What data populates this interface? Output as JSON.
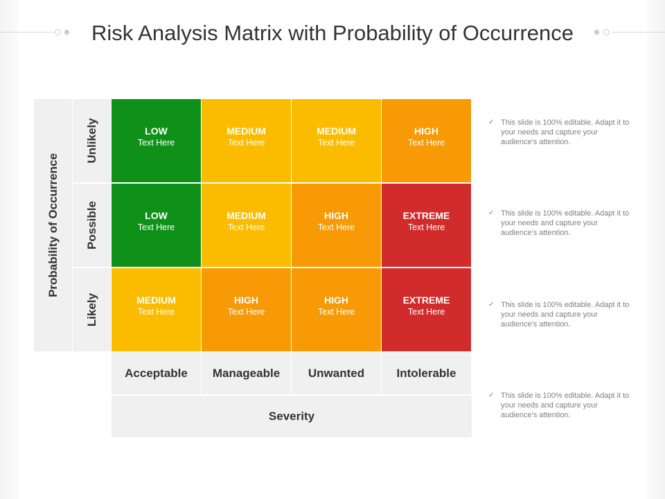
{
  "title": "Risk Analysis Matrix with Probability of Occurrence",
  "y_axis_label": "Probability of Occurrence",
  "x_axis_label": "Severity",
  "rows": [
    "Unlikely",
    "Possible",
    "Likely"
  ],
  "columns": [
    "Acceptable",
    "Manageable",
    "Unwanted",
    "Intolerable"
  ],
  "cell_sub": "Text Here",
  "matrix": [
    [
      "LOW",
      "MEDIUM",
      "MEDIUM",
      "HIGH"
    ],
    [
      "LOW",
      "MEDIUM",
      "HIGH",
      "EXTREME"
    ],
    [
      "MEDIUM",
      "HIGH",
      "HIGH",
      "EXTREME"
    ]
  ],
  "level_colors": {
    "LOW": "#0f9119",
    "MEDIUM": "#fbbc00",
    "HIGH": "#f79a05",
    "EXTREME": "#d22b2b"
  },
  "notes": [
    "This slide is 100% editable. Adapt it to your needs and capture your audience's attention.",
    "This slide is 100% editable. Adapt it to your needs and capture your audience's attention.",
    "This slide is 100% editable. Adapt it to your needs and capture your audience's attention.",
    "This slide is 100% editable. Adapt it to your needs and capture your audience's attention."
  ],
  "note_icon": "check-icon"
}
